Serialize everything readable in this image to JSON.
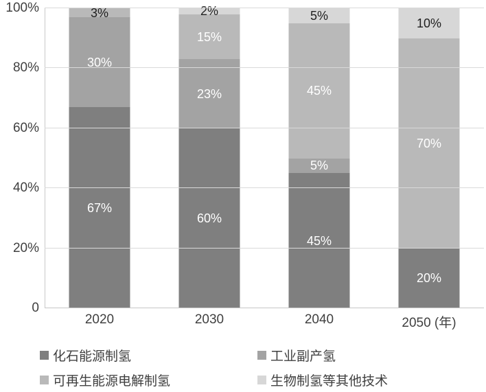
{
  "chart_data": {
    "type": "bar",
    "stacked": true,
    "title": "",
    "xlabel": "",
    "ylabel": "",
    "categories": [
      2020,
      2030,
      2040,
      2050
    ],
    "x_tick_labels": [
      "2020",
      "2030",
      "2040",
      "2050 (年)"
    ],
    "x_axis_unit": "年",
    "series": [
      {
        "key": "fossil",
        "name": "化石能源制氢",
        "color": "#7f7f7f",
        "values": [
          67,
          60,
          45,
          20
        ]
      },
      {
        "key": "industrial",
        "name": "工业副产氢",
        "color": "#a3a3a3",
        "values": [
          30,
          23,
          5,
          0
        ]
      },
      {
        "key": "electrolysis",
        "name": "可再生能源电解制氢",
        "color": "#b9b9b9",
        "values": [
          3,
          15,
          45,
          70
        ]
      },
      {
        "key": "bio",
        "name": "生物制氢等其他技术",
        "color": "#d7d7d7",
        "values": [
          0,
          2,
          5,
          10
        ]
      }
    ],
    "segment_labels": {
      "2020": [
        "67%",
        "30%",
        "3%",
        ""
      ],
      "2030": [
        "60%",
        "23%",
        "15%",
        "2%"
      ],
      "2040": [
        "45%",
        "5%",
        "45%",
        "5%"
      ],
      "2050": [
        "20%",
        "",
        "70%",
        "10%"
      ]
    },
    "y_ticks": [
      {
        "value": 0,
        "label": "0"
      },
      {
        "value": 20,
        "label": "20%"
      },
      {
        "value": 40,
        "label": "40%"
      },
      {
        "value": 60,
        "label": "60%"
      },
      {
        "value": 80,
        "label": "80%"
      },
      {
        "value": 100,
        "label": "100%"
      }
    ],
    "ylim": [
      0,
      100
    ],
    "grid": true,
    "legend_position": "bottom",
    "colors": {
      "grid": "#d9d9d9",
      "axis": "#c9c9c9",
      "tick_text": "#404040",
      "label_light": "#ffffff",
      "label_dark": "#1f1f1f",
      "background": "#ffffff"
    }
  }
}
